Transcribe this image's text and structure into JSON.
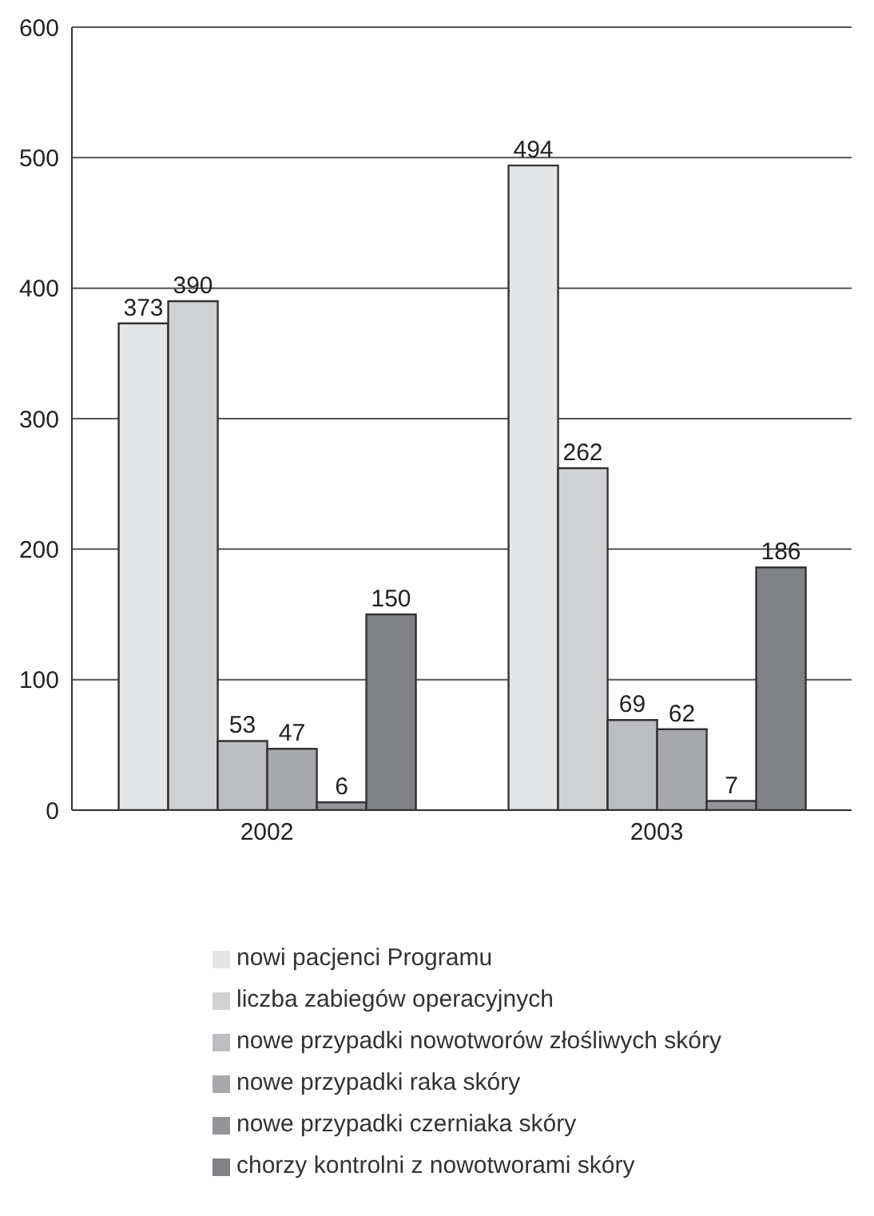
{
  "chart_data": {
    "type": "bar",
    "categories": [
      "2002",
      "2003"
    ],
    "series": [
      {
        "name": "nowi pacjenci Programu",
        "color": "#e4e5e7",
        "values": [
          373,
          494
        ]
      },
      {
        "name": "liczba zabiegów operacyjnych",
        "color": "#d1d2d4",
        "values": [
          390,
          262
        ]
      },
      {
        "name": "nowe przypadki nowotworów złośliwych skóry",
        "color": "#bcbdc0",
        "values": [
          53,
          69
        ]
      },
      {
        "name": "nowe przypadki raka skóry",
        "color": "#a7a8ab",
        "values": [
          47,
          62
        ]
      },
      {
        "name": "nowe przypadki czerniaka skóry",
        "color": "#939598",
        "values": [
          6,
          7
        ]
      },
      {
        "name": "chorzy kontrolni z nowotworami skóry",
        "color": "#808285",
        "values": [
          150,
          186
        ]
      }
    ],
    "ylim": [
      0,
      600
    ],
    "yticks": [
      0,
      100,
      200,
      300,
      400,
      500,
      600
    ],
    "grid": "y",
    "legend": "bottom",
    "data_labels": true
  }
}
